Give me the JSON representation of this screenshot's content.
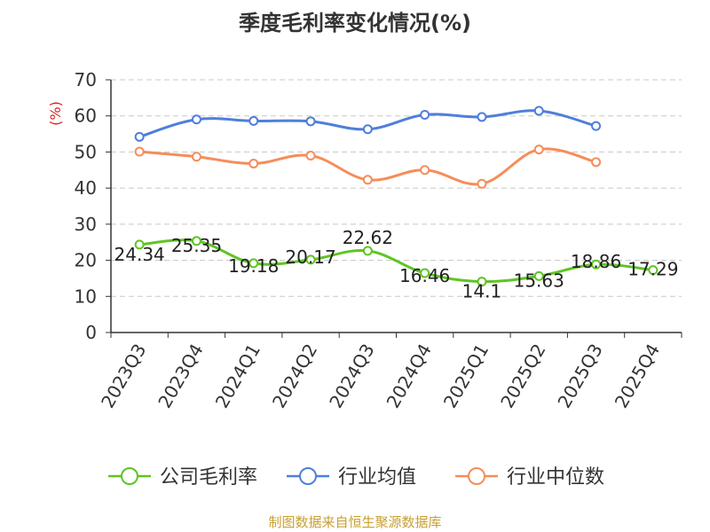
{
  "chart_data": {
    "type": "line",
    "title": "季度毛利率变化情况(%)",
    "ylabel": "(%)",
    "xlabel": "",
    "ylim": [
      0,
      70
    ],
    "yticks": [
      0,
      10,
      20,
      30,
      40,
      50,
      60,
      70
    ],
    "categories": [
      "2023Q3",
      "2023Q4",
      "2024Q1",
      "2024Q2",
      "2024Q3",
      "2024Q4",
      "2025Q1",
      "2025Q2",
      "2025Q3",
      "2025Q4"
    ],
    "grid": true,
    "legend_position": "bottom",
    "series": [
      {
        "name": "公司毛利率",
        "color": "#5fc423",
        "labeled": true,
        "values": [
          24.34,
          25.35,
          19.18,
          20.17,
          22.62,
          16.46,
          14.1,
          15.63,
          18.86,
          17.29
        ],
        "labels": [
          "24.34",
          "25.35",
          "19.18",
          "20.17",
          "22.62",
          "16.46",
          "14.1",
          "15.63",
          "18.86",
          "17.29"
        ]
      },
      {
        "name": "行业均值",
        "color": "#4f7fdb",
        "labeled": false,
        "values": [
          54.2,
          59.0,
          58.6,
          58.5,
          56.3,
          60.3,
          59.7,
          61.4,
          57.2,
          null
        ]
      },
      {
        "name": "行业中位数",
        "color": "#f58d5a",
        "labeled": false,
        "values": [
          50.1,
          48.7,
          46.8,
          49.0,
          42.3,
          45.0,
          41.2,
          50.7,
          47.2,
          null
        ]
      }
    ],
    "source": "制图数据来自恒生聚源数据库"
  }
}
